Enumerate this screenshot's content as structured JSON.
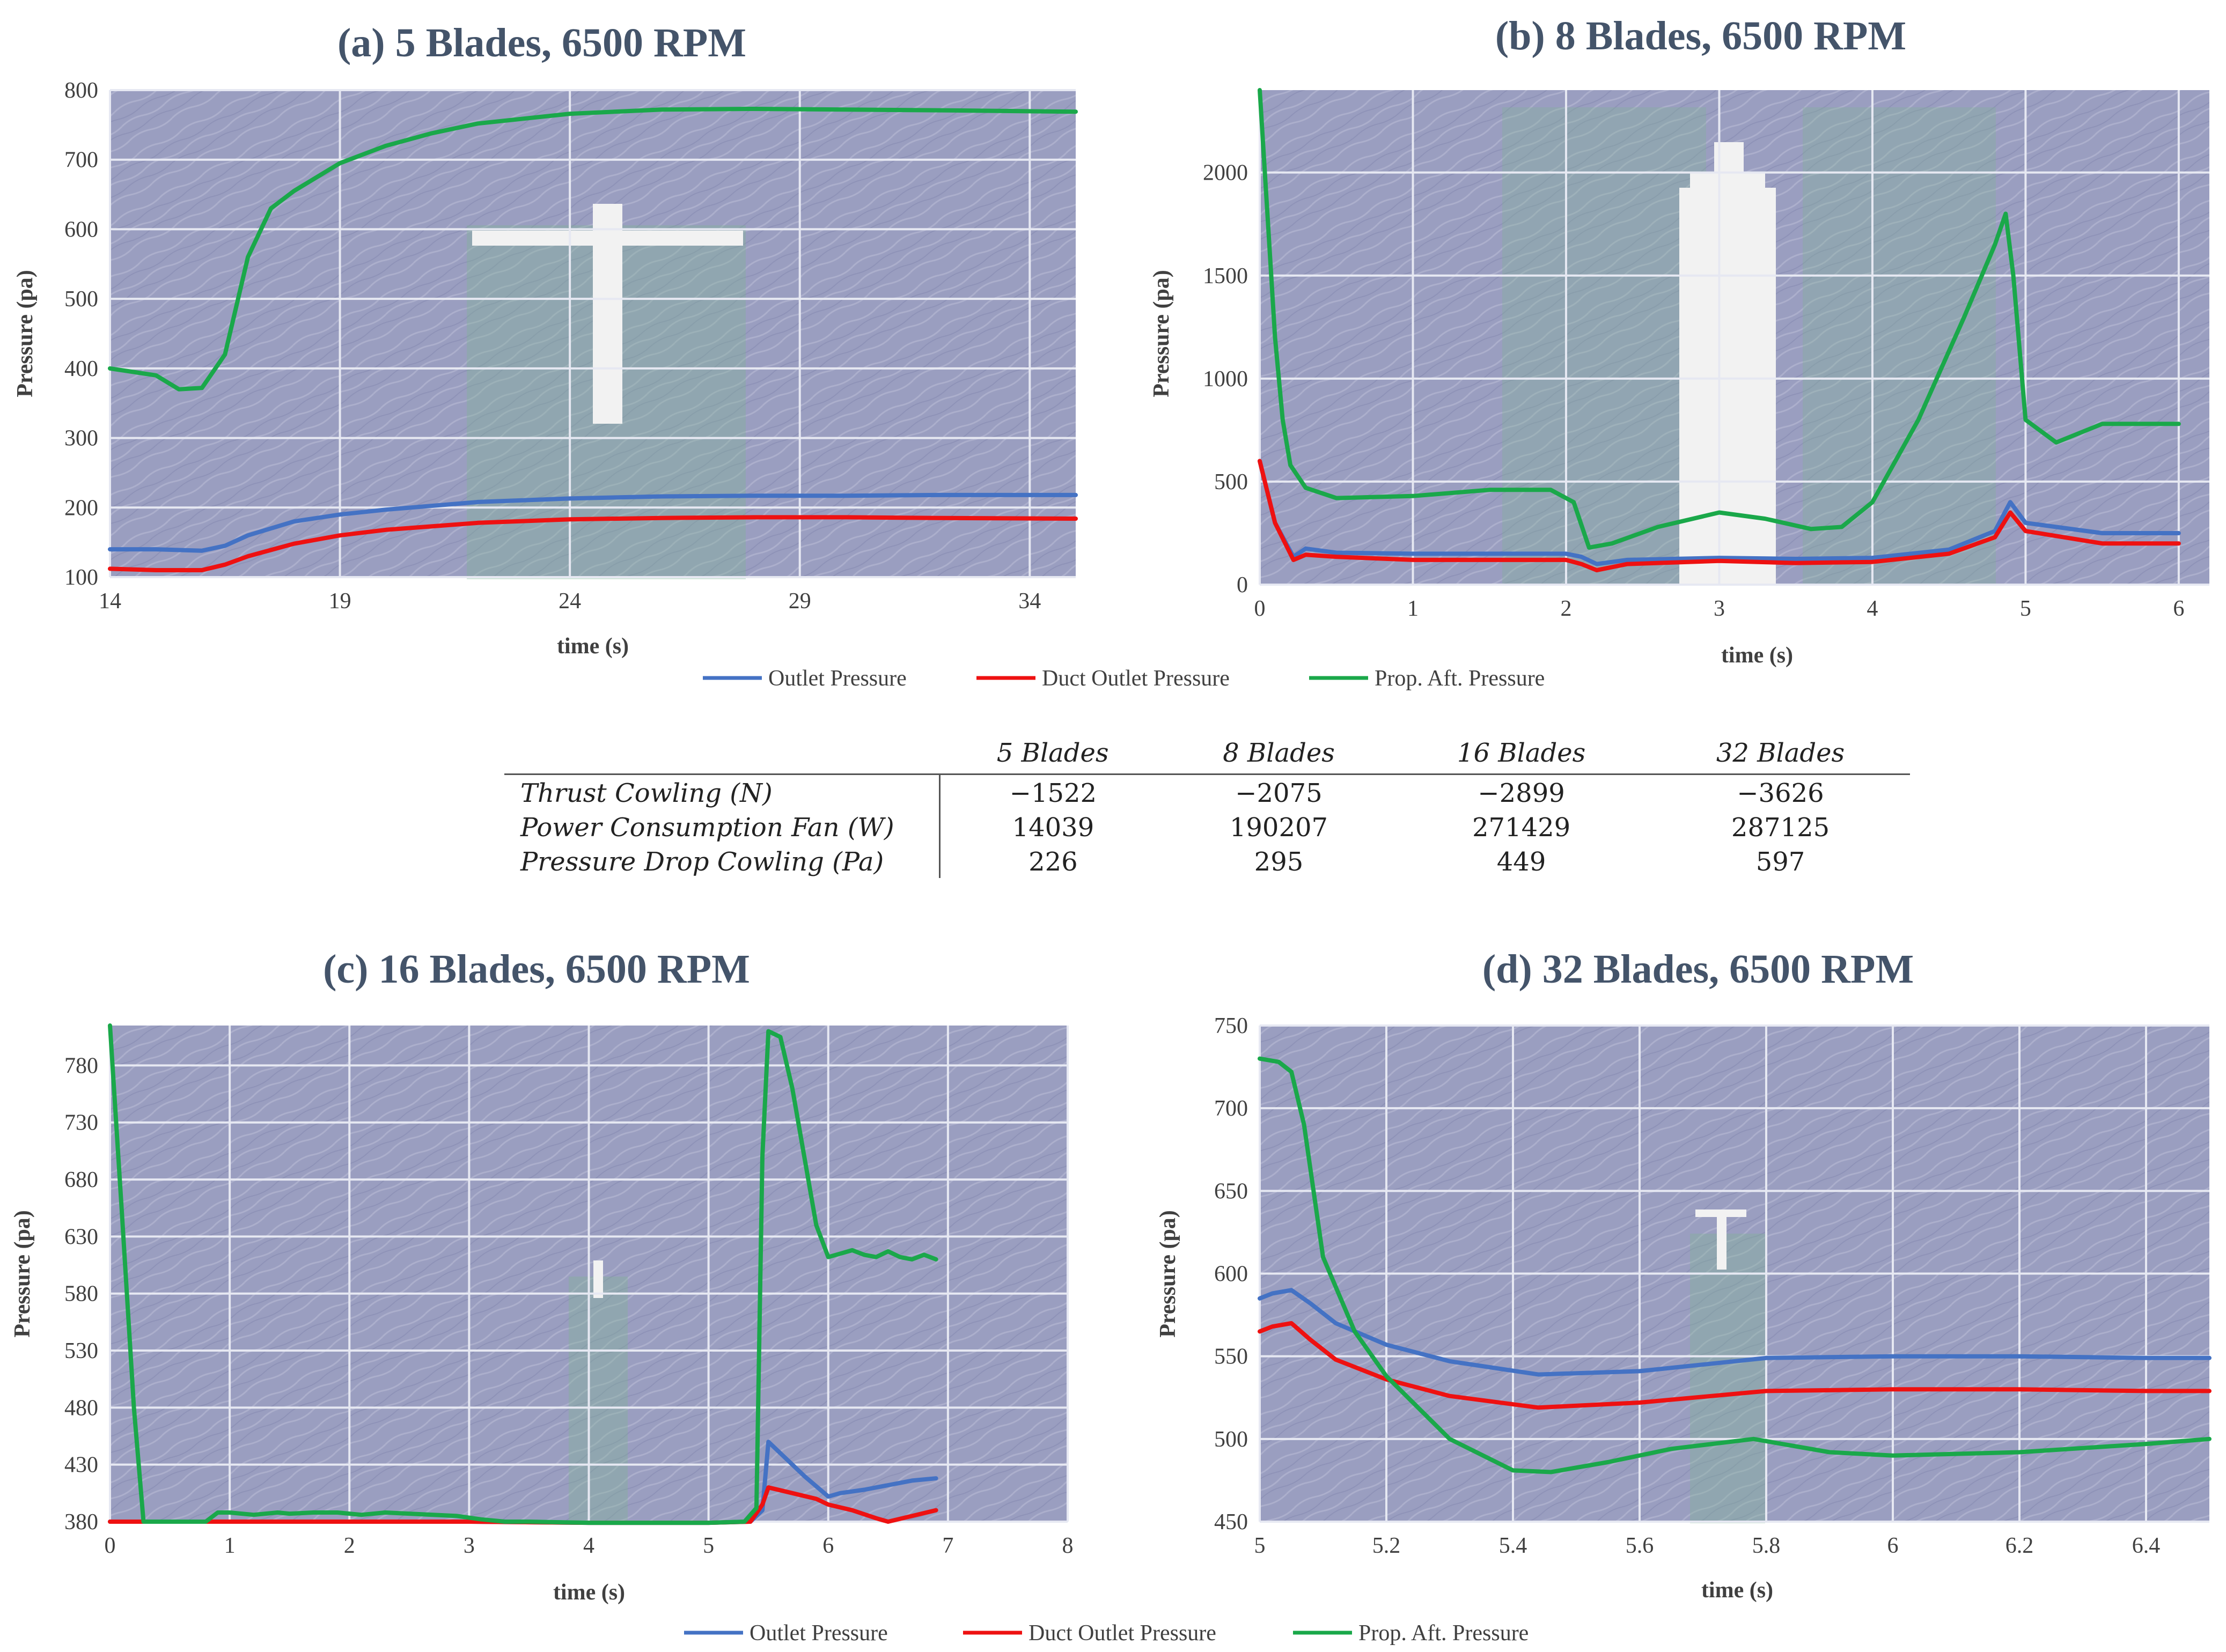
{
  "legend": {
    "items": [
      {
        "label": "Outlet Pressure",
        "color": "#4472c4"
      },
      {
        "label": "Duct Outlet Pressure",
        "color": "#ee1111"
      },
      {
        "label": "Prop. Aft. Pressure",
        "color": "#1aa84a"
      }
    ]
  },
  "table": {
    "headers": [
      "5 Blades",
      "8 Blades",
      "16 Blades",
      "32 Blades"
    ],
    "rows": [
      {
        "label": "Thrust Cowling (N)",
        "values": [
          "−1522",
          "−2075",
          "−2899",
          "−3626"
        ]
      },
      {
        "label": "Power Consumption Fan (W)",
        "values": [
          "14039",
          "190207",
          "271429",
          "287125"
        ]
      },
      {
        "label": "Pressure Drop Cowling (Pa)",
        "values": [
          "226",
          "295",
          "449",
          "597"
        ]
      }
    ]
  },
  "chart_data": [
    {
      "type": "line",
      "title": "(a) 5 Blades, 6500 RPM",
      "xlabel": "time (s)",
      "ylabel": "Pressure (pa)",
      "xlim": [
        14,
        35
      ],
      "ylim": [
        100,
        800
      ],
      "xticks": [
        14,
        19,
        24,
        29,
        34
      ],
      "yticks": [
        100,
        200,
        300,
        400,
        500,
        600,
        700,
        800
      ],
      "grid": true,
      "series": [
        {
          "name": "Outlet Pressure",
          "color": "#4472c4",
          "x": [
            14,
            15,
            16,
            16.5,
            17,
            18,
            19,
            20,
            22,
            24,
            26,
            28,
            30,
            32,
            35
          ],
          "y": [
            140,
            140,
            138,
            145,
            160,
            180,
            190,
            197,
            208,
            213,
            216,
            217,
            217,
            218,
            218
          ]
        },
        {
          "name": "Duct Outlet Pressure",
          "color": "#ee1111",
          "x": [
            14,
            15,
            16,
            16.5,
            17,
            18,
            19,
            20,
            22,
            24,
            26,
            28,
            30,
            32,
            35
          ],
          "y": [
            112,
            110,
            110,
            118,
            130,
            148,
            160,
            168,
            178,
            183,
            185,
            186,
            186,
            185,
            184
          ]
        },
        {
          "name": "Prop. Aft. Pressure",
          "color": "#1aa84a",
          "x": [
            14,
            15,
            15.5,
            16,
            16.5,
            17,
            17.5,
            18,
            19,
            20,
            21,
            22,
            24,
            26,
            28,
            30,
            32,
            35
          ],
          "y": [
            400,
            390,
            370,
            372,
            420,
            560,
            630,
            655,
            695,
            720,
            738,
            752,
            766,
            772,
            773,
            772,
            771,
            769
          ]
        }
      ]
    },
    {
      "type": "line",
      "title": "(b) 8 Blades, 6500 RPM",
      "xlabel": "time (s)",
      "ylabel": "Pressure (pa)",
      "xlim": [
        0,
        6.2
      ],
      "ylim": [
        0,
        2400
      ],
      "xticks": [
        0,
        1,
        2,
        3,
        4,
        5,
        6
      ],
      "yticks": [
        0,
        500,
        1000,
        1500,
        2000
      ],
      "grid": true,
      "series": [
        {
          "name": "Outlet Pressure",
          "color": "#4472c4",
          "x": [
            0,
            0.1,
            0.22,
            0.3,
            0.5,
            1,
            1.5,
            2,
            2.1,
            2.2,
            2.4,
            3,
            3.5,
            4,
            4.5,
            4.8,
            4.9,
            5,
            5.5,
            6
          ],
          "y": [
            600,
            300,
            135,
            175,
            155,
            150,
            150,
            150,
            135,
            100,
            120,
            130,
            125,
            130,
            170,
            260,
            400,
            300,
            250,
            250
          ]
        },
        {
          "name": "Duct Outlet Pressure",
          "color": "#ee1111",
          "x": [
            0,
            0.1,
            0.22,
            0.3,
            0.5,
            1,
            1.5,
            2,
            2.1,
            2.2,
            2.4,
            3,
            3.5,
            4,
            4.5,
            4.8,
            4.9,
            5,
            5.5,
            6
          ],
          "y": [
            600,
            300,
            120,
            145,
            135,
            120,
            120,
            120,
            100,
            70,
            100,
            115,
            105,
            110,
            150,
            230,
            350,
            260,
            200,
            200
          ]
        },
        {
          "name": "Prop. Aft. Pressure",
          "color": "#1aa84a",
          "x": [
            0,
            0.05,
            0.1,
            0.15,
            0.2,
            0.3,
            0.5,
            1,
            1.5,
            1.9,
            2.05,
            2.15,
            2.3,
            2.6,
            3.0,
            3.3,
            3.6,
            3.8,
            4.0,
            4.3,
            4.6,
            4.8,
            4.87,
            4.92,
            5.0,
            5.2,
            5.5,
            6.0
          ],
          "y": [
            2400,
            1800,
            1200,
            800,
            580,
            470,
            420,
            430,
            460,
            460,
            400,
            180,
            200,
            280,
            350,
            320,
            270,
            280,
            400,
            800,
            1300,
            1650,
            1800,
            1500,
            800,
            690,
            780,
            780
          ]
        }
      ]
    },
    {
      "type": "line",
      "title": "(c) 16 Blades, 6500 RPM",
      "xlabel": "time (s)",
      "ylabel": "Pressure (pa)",
      "xlim": [
        0,
        8
      ],
      "ylim": [
        380,
        815
      ],
      "xticks": [
        0,
        1,
        2,
        3,
        4,
        5,
        6,
        7,
        8
      ],
      "yticks": [
        380,
        430,
        480,
        530,
        580,
        630,
        680,
        730,
        780
      ],
      "grid": true,
      "series": [
        {
          "name": "Outlet Pressure",
          "color": "#4472c4",
          "x": [
            0,
            1,
            2,
            3,
            4,
            5,
            5.35,
            5.45,
            5.5,
            5.6,
            5.8,
            6.0,
            6.1,
            6.3,
            6.5,
            6.7,
            6.9
          ],
          "y": [
            380,
            380,
            380,
            380,
            379,
            379,
            380,
            390,
            450,
            440,
            420,
            402,
            405,
            408,
            412,
            416,
            418
          ]
        },
        {
          "name": "Duct Outlet Pressure",
          "color": "#ee1111",
          "x": [
            0,
            1,
            2,
            3,
            4,
            5,
            5.35,
            5.45,
            5.5,
            5.7,
            5.9,
            6.0,
            6.2,
            6.4,
            6.5,
            6.7,
            6.9
          ],
          "y": [
            380,
            380,
            380,
            380,
            379,
            379,
            380,
            395,
            410,
            405,
            400,
            395,
            390,
            383,
            380,
            385,
            390
          ]
        },
        {
          "name": "Prop. Aft. Pressure",
          "color": "#1aa84a",
          "x": [
            0,
            0.1,
            0.2,
            0.28,
            0.8,
            0.9,
            1.0,
            1.2,
            1.4,
            1.5,
            1.7,
            1.9,
            2.1,
            2.3,
            2.5,
            2.7,
            2.9,
            3.1,
            3.3,
            3.5,
            4.0,
            4.5,
            5.0,
            5.3,
            5.4,
            5.45,
            5.5,
            5.6,
            5.7,
            5.8,
            5.9,
            6.0,
            6.1,
            6.2,
            6.3,
            6.4,
            6.5,
            6.6,
            6.7,
            6.8,
            6.9
          ],
          "y": [
            815,
            650,
            480,
            380,
            380,
            388,
            388,
            386,
            388,
            387,
            388,
            388,
            386,
            388,
            387,
            386,
            385,
            382,
            380,
            380,
            379,
            379,
            379,
            380,
            392,
            700,
            810,
            805,
            760,
            700,
            640,
            612,
            615,
            618,
            614,
            612,
            617,
            612,
            610,
            614,
            610
          ]
        }
      ]
    },
    {
      "type": "line",
      "title": "(d) 32 Blades, 6500 RPM",
      "xlabel": "time (s)",
      "ylabel": "Pressure (pa)",
      "xlim": [
        5,
        6.5
      ],
      "ylim": [
        450,
        750
      ],
      "xticks": [
        5,
        5.2,
        5.4,
        5.6,
        5.8,
        6,
        6.2,
        6.4
      ],
      "yticks": [
        450,
        500,
        550,
        600,
        650,
        700,
        750
      ],
      "grid": true,
      "series": [
        {
          "name": "Outlet Pressure",
          "color": "#4472c4",
          "x": [
            5,
            5.02,
            5.05,
            5.08,
            5.12,
            5.2,
            5.3,
            5.44,
            5.6,
            5.8,
            6.0,
            6.2,
            6.4,
            6.5
          ],
          "y": [
            585,
            588,
            590,
            582,
            570,
            557,
            547,
            539,
            541,
            549,
            550,
            550,
            549,
            549
          ]
        },
        {
          "name": "Duct Outlet Pressure",
          "color": "#ee1111",
          "x": [
            5,
            5.02,
            5.05,
            5.08,
            5.12,
            5.2,
            5.3,
            5.44,
            5.6,
            5.8,
            6.0,
            6.2,
            6.4,
            6.5
          ],
          "y": [
            565,
            568,
            570,
            560,
            548,
            536,
            526,
            519,
            522,
            529,
            530,
            530,
            529,
            529
          ]
        },
        {
          "name": "Prop. Aft. Pressure",
          "color": "#1aa84a",
          "x": [
            5,
            5.03,
            5.05,
            5.07,
            5.1,
            5.15,
            5.2,
            5.3,
            5.4,
            5.46,
            5.55,
            5.65,
            5.78,
            5.9,
            6.0,
            6.2,
            6.4,
            6.5
          ],
          "y": [
            730,
            728,
            722,
            690,
            610,
            565,
            538,
            500,
            481,
            480,
            486,
            494,
            500,
            492,
            490,
            492,
            497,
            500
          ]
        }
      ]
    }
  ]
}
